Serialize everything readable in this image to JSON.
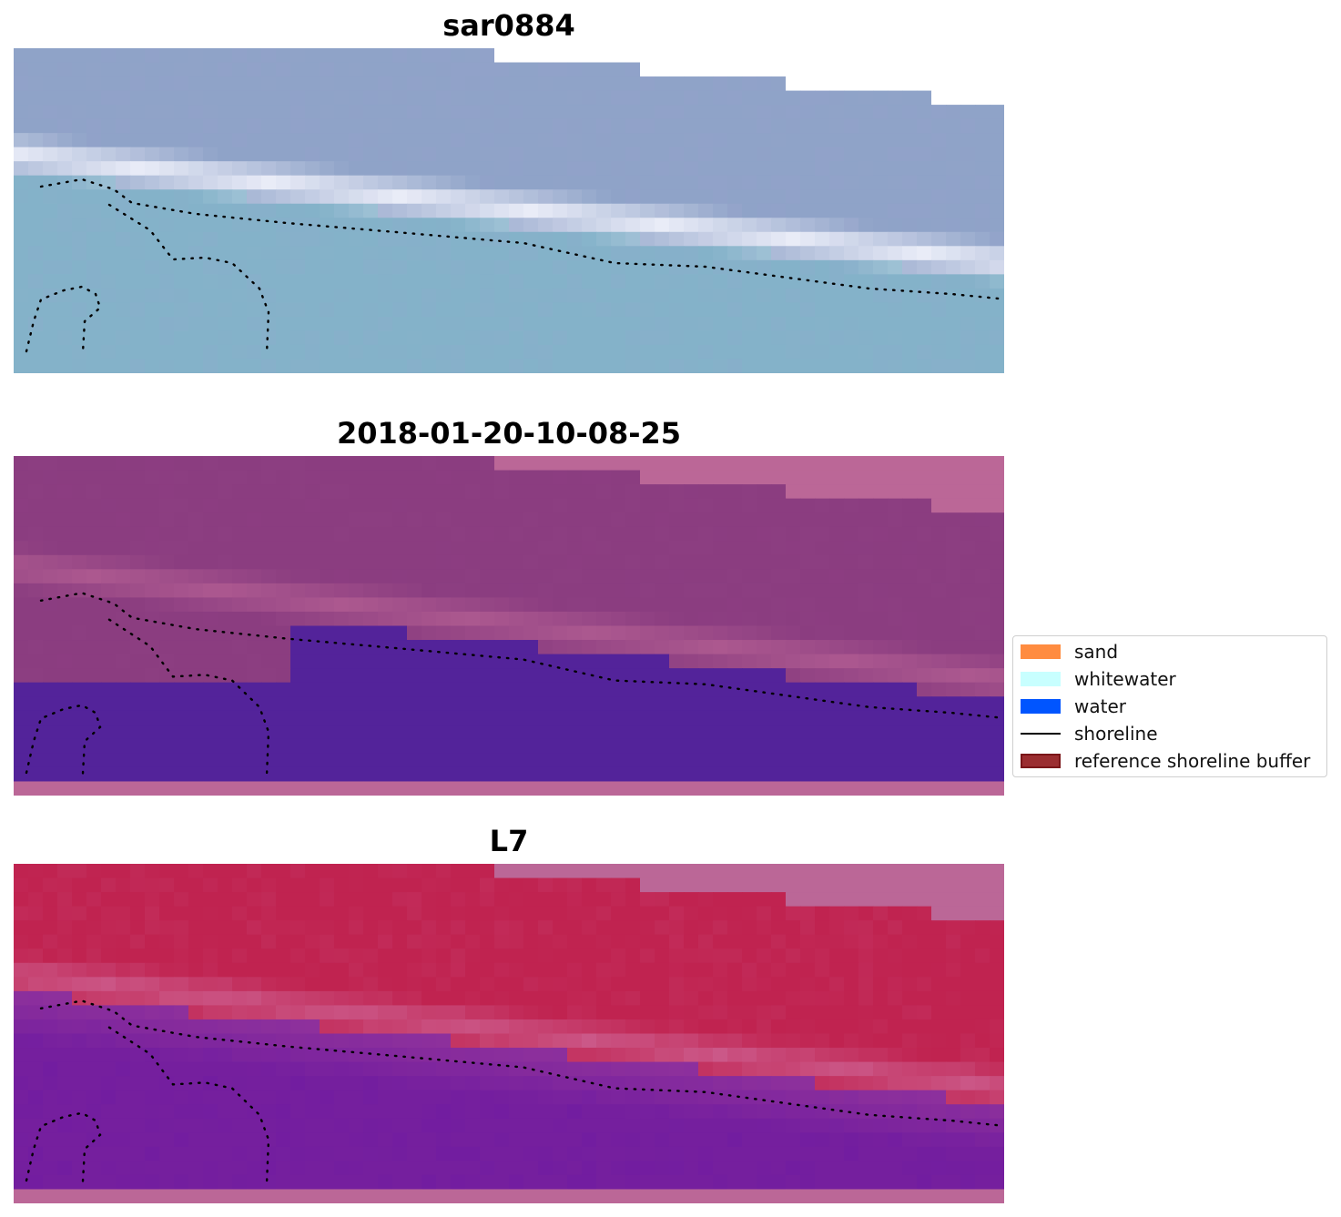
{
  "panels": [
    {
      "id": "rgb",
      "title": "sar0884"
    },
    {
      "id": "classified",
      "title": "2018-01-20-10-08-25"
    },
    {
      "id": "index",
      "title": "L7"
    }
  ],
  "legend": {
    "items": [
      {
        "label": "sand",
        "kind": "patch",
        "color": "#ff8c40"
      },
      {
        "label": "whitewater",
        "kind": "patch",
        "color": "#c8ffff"
      },
      {
        "label": "water",
        "kind": "patch",
        "color": "#0055ff"
      },
      {
        "label": "shoreline",
        "kind": "line",
        "color": "#000000"
      },
      {
        "label": "reference shoreline buffer",
        "kind": "patch",
        "color": "#9b2d30",
        "edge": "#7a1518"
      }
    ]
  },
  "colors": {
    "nodata_pink": "#bb6797",
    "water_mask": "#53239a",
    "rgb_water": "#84b2c9",
    "rgb_land": "#8fa3c8",
    "rgb_surf": "#eef0fa",
    "class_land": "#8b3d80",
    "class_surf": "#b45f93",
    "index_land": "#c02350",
    "index_water": "#751f9e"
  }
}
